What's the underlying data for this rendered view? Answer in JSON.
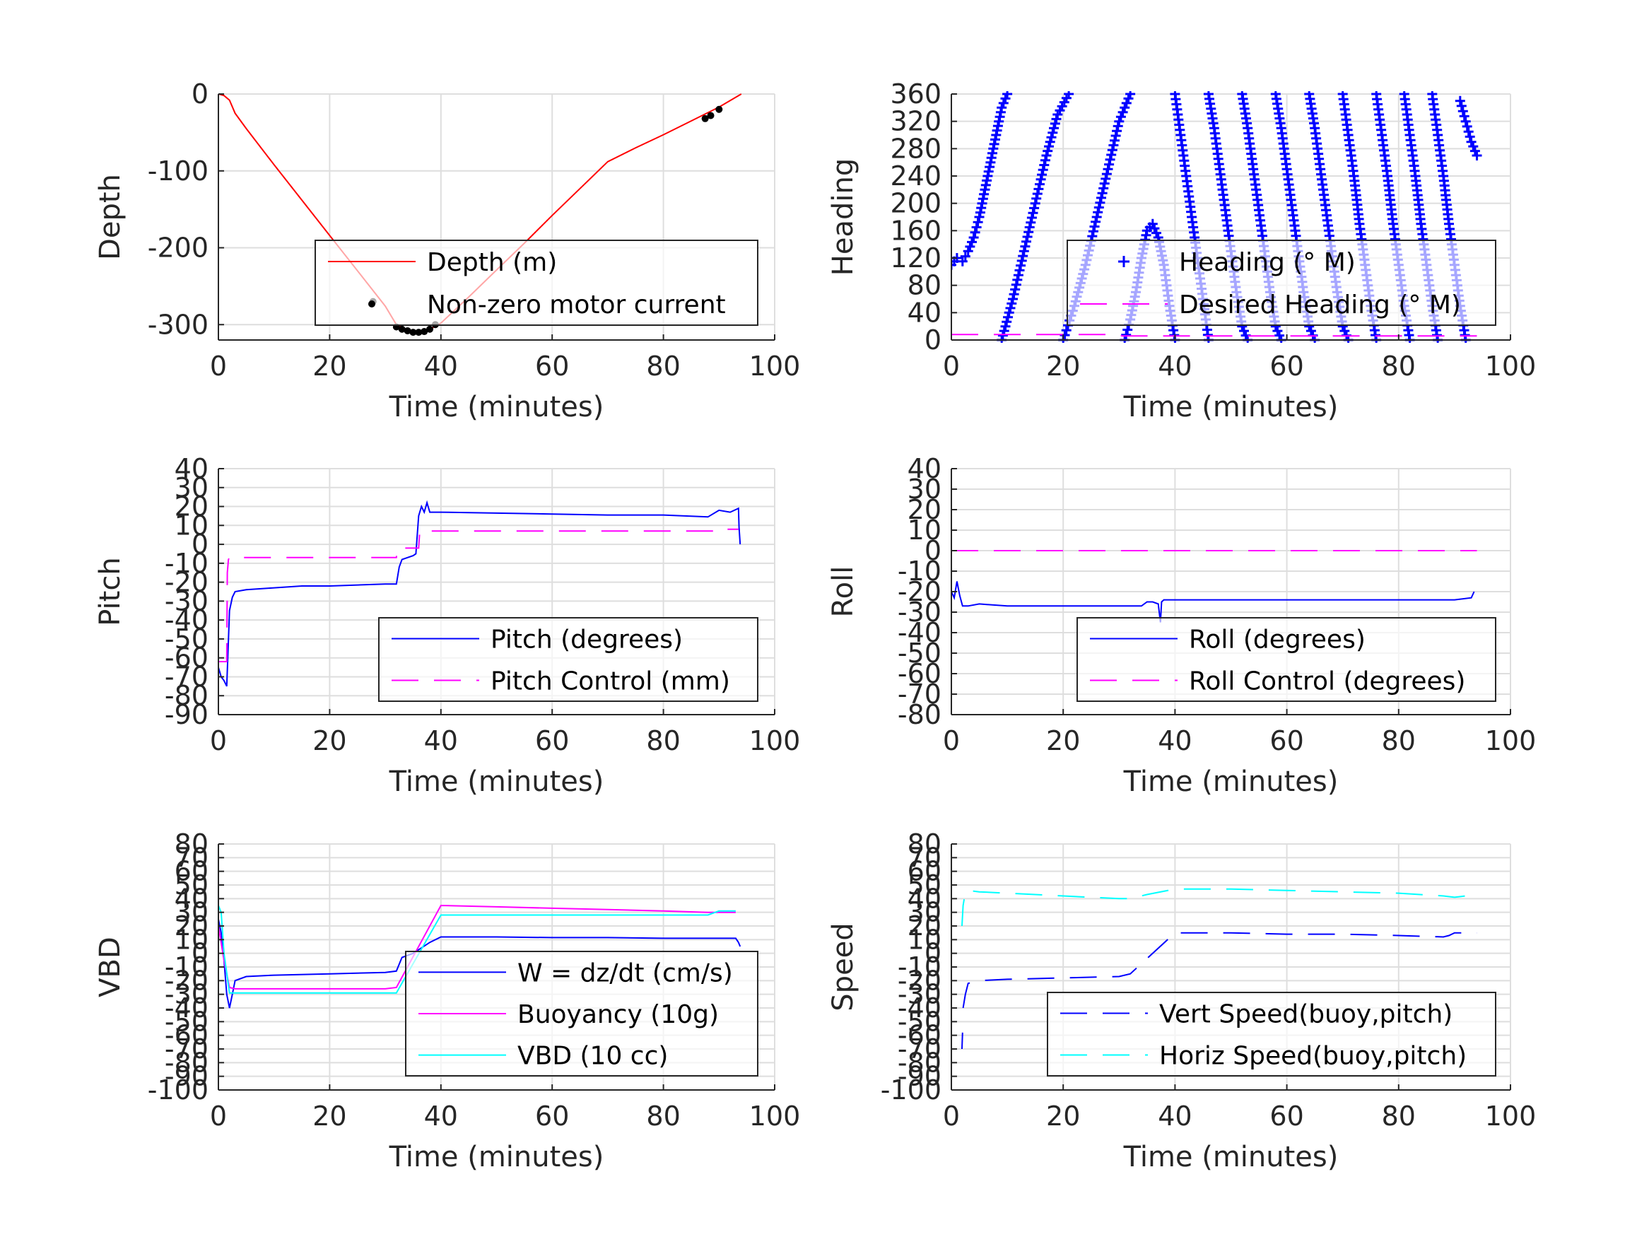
{
  "chart_data": [
    {
      "type": "line",
      "xlabel": "Time (minutes)",
      "ylabel": "Depth",
      "xlim": [
        0,
        100
      ],
      "ylim": [
        -320,
        0
      ],
      "xticks": [
        0,
        20,
        40,
        60,
        80,
        100
      ],
      "yticks": [
        0,
        -100,
        -200,
        -300
      ],
      "grid": true,
      "legend_placement": "bottom-right",
      "series": [
        {
          "name": "Depth (m)",
          "style": "solid",
          "marker": "none",
          "color": "#ff0000",
          "x": [
            0,
            1,
            2,
            3,
            5,
            10,
            15,
            20,
            25,
            30,
            32,
            34,
            36,
            38,
            40,
            45,
            50,
            55,
            60,
            65,
            70,
            75,
            80,
            85,
            90,
            94
          ],
          "y": [
            0,
            -2,
            -8,
            -25,
            -45,
            -92,
            -138,
            -184,
            -230,
            -276,
            -300,
            -307,
            -310,
            -306,
            -298,
            -264,
            -229,
            -194,
            -158,
            -123,
            -88,
            -70,
            -53,
            -35,
            -17,
            0
          ]
        },
        {
          "name": "Non-zero motor current",
          "style": "none",
          "marker": "dot",
          "color": "#000000",
          "x": [
            27.8,
            32,
            33,
            34,
            35,
            36,
            37,
            38,
            39,
            87.5,
            88.5,
            90
          ],
          "y": [
            -270,
            -303,
            -306,
            -308,
            -310,
            -310,
            -309,
            -306,
            -300,
            -32,
            -28,
            -20
          ]
        }
      ]
    },
    {
      "type": "scatter",
      "xlabel": "Time (minutes)",
      "ylabel": "Heading",
      "xlim": [
        0,
        100
      ],
      "ylim": [
        0,
        360
      ],
      "xticks": [
        0,
        20,
        40,
        60,
        80,
        100
      ],
      "yticks": [
        0,
        40,
        80,
        120,
        160,
        200,
        240,
        280,
        320,
        360
      ],
      "grid": true,
      "legend_placement": "bottom-right",
      "series": [
        {
          "name": "Heading (° M)",
          "style": "none",
          "marker": "plus",
          "color": "#0000ff",
          "segments": [
            {
              "x": [
                0,
                1,
                2,
                3,
                4,
                5,
                6,
                7,
                8,
                9,
                10
              ],
              "y": [
                110,
                120,
                115,
                130,
                150,
                180,
                220,
                260,
                300,
                340,
                360
              ]
            },
            {
              "x": [
                9,
                11,
                13,
                15,
                17,
                19,
                21
              ],
              "y": [
                0,
                60,
                130,
                200,
                270,
                330,
                360
              ]
            },
            {
              "x": [
                20,
                22,
                24,
                26,
                28,
                30,
                32
              ],
              "y": [
                0,
                50,
                110,
                180,
                250,
                320,
                360
              ]
            },
            {
              "x": [
                31,
                32,
                33,
                34,
                35,
                36,
                37,
                38,
                39,
                40
              ],
              "y": [
                0,
                30,
                70,
                120,
                160,
                170,
                150,
                110,
                50,
                0
              ]
            },
            {
              "x": [
                40,
                41,
                42,
                43,
                44,
                45,
                46
              ],
              "y": [
                360,
                300,
                240,
                180,
                120,
                60,
                0
              ]
            },
            {
              "x": [
                46,
                47,
                48,
                49,
                50,
                51,
                52,
                53
              ],
              "y": [
                360,
                310,
                250,
                190,
                130,
                70,
                20,
                0
              ]
            },
            {
              "x": [
                52,
                53,
                54,
                55,
                56,
                57,
                58,
                59
              ],
              "y": [
                360,
                310,
                250,
                190,
                130,
                70,
                20,
                0
              ]
            },
            {
              "x": [
                58,
                59,
                60,
                61,
                62,
                63,
                64,
                65
              ],
              "y": [
                360,
                310,
                250,
                190,
                130,
                70,
                20,
                0
              ]
            },
            {
              "x": [
                64,
                65,
                66,
                67,
                68,
                69,
                70,
                71
              ],
              "y": [
                360,
                310,
                250,
                190,
                130,
                70,
                20,
                0
              ]
            },
            {
              "x": [
                70,
                71,
                72,
                73,
                74,
                75,
                76
              ],
              "y": [
                360,
                300,
                240,
                170,
                110,
                50,
                0
              ]
            },
            {
              "x": [
                76,
                77,
                78,
                79,
                80,
                81,
                82
              ],
              "y": [
                360,
                300,
                240,
                170,
                110,
                50,
                0
              ]
            },
            {
              "x": [
                81,
                82,
                83,
                84,
                85,
                86,
                87
              ],
              "y": [
                360,
                300,
                240,
                170,
                110,
                50,
                0
              ]
            },
            {
              "x": [
                86,
                87,
                88,
                89,
                90,
                91,
                92
              ],
              "y": [
                360,
                300,
                240,
                170,
                110,
                50,
                0
              ]
            },
            {
              "x": [
                91,
                92,
                93,
                94
              ],
              "y": [
                350,
                320,
                290,
                270
              ]
            }
          ]
        },
        {
          "name": "Desired Heading (° M)",
          "style": "dashed",
          "marker": "none",
          "color": "#ff00ff",
          "x": [
            0,
            30,
            30.5,
            60,
            94
          ],
          "y": [
            8,
            8,
            6,
            6,
            6
          ]
        }
      ]
    },
    {
      "type": "line",
      "xlabel": "Time (minutes)",
      "ylabel": "Pitch",
      "xlim": [
        0,
        100
      ],
      "ylim": [
        -90,
        40
      ],
      "xticks": [
        0,
        20,
        40,
        60,
        80,
        100
      ],
      "yticks": [
        40,
        30,
        20,
        10,
        0,
        -10,
        -20,
        -30,
        -40,
        -50,
        -60,
        -70,
        -80,
        -90
      ],
      "grid": true,
      "legend_placement": "bottom-right",
      "series": [
        {
          "name": "Pitch (degrees)",
          "style": "solid",
          "marker": "none",
          "color": "#0000ff",
          "x": [
            0,
            0.5,
            1,
            1.5,
            2,
            2.5,
            3,
            5,
            10,
            15,
            20,
            25,
            30,
            32,
            32.5,
            33,
            35,
            35.5,
            36,
            36.5,
            37,
            37.5,
            38,
            40,
            50,
            60,
            70,
            80,
            88,
            90,
            92,
            93.5,
            93.6,
            93.8
          ],
          "y": [
            -65,
            -70,
            -72,
            -75,
            -35,
            -28,
            -25,
            -24,
            -23,
            -22,
            -22,
            -21.5,
            -21,
            -21,
            -12,
            -8,
            -6,
            -5,
            15,
            20,
            17,
            22,
            17,
            17,
            16.5,
            16,
            15.5,
            15.5,
            14.5,
            18,
            17,
            19,
            9,
            0
          ]
        },
        {
          "name": "Pitch Control (mm)",
          "style": "dashed",
          "marker": "none",
          "color": "#ff00ff",
          "x": [
            0,
            1.5,
            1.6,
            1.8,
            2,
            3,
            32,
            32.2,
            36,
            36.2,
            90,
            90.2,
            93.5
          ],
          "y": [
            -62,
            -62,
            -15,
            -8,
            -7,
            -7,
            -7,
            -2,
            -2,
            7,
            7,
            8,
            8
          ]
        }
      ]
    },
    {
      "type": "line",
      "xlabel": "Time (minutes)",
      "ylabel": "Roll",
      "xlim": [
        0,
        100
      ],
      "ylim": [
        -80,
        40
      ],
      "xticks": [
        0,
        20,
        40,
        60,
        80,
        100
      ],
      "yticks": [
        40,
        30,
        20,
        10,
        0,
        -10,
        -20,
        -30,
        -40,
        -50,
        -60,
        -70,
        -80
      ],
      "grid": true,
      "legend_placement": "bottom-right",
      "series": [
        {
          "name": "Roll (degrees)",
          "style": "solid",
          "marker": "none",
          "color": "#0000ff",
          "x": [
            0,
            0.5,
            1,
            1.5,
            2,
            3,
            5,
            10,
            20,
            30,
            34,
            35,
            36,
            37,
            37.4,
            37.6,
            38,
            40,
            50,
            60,
            70,
            80,
            90,
            93,
            93.5
          ],
          "y": [
            -20,
            -23,
            -15,
            -22,
            -27,
            -27,
            -26,
            -27,
            -27,
            -27,
            -27,
            -25,
            -25,
            -26,
            -35,
            -25,
            -24,
            -24,
            -24,
            -24,
            -24,
            -24,
            -24,
            -23,
            -20
          ]
        },
        {
          "name": "Roll Control (degrees)",
          "style": "dashed",
          "marker": "none",
          "color": "#ff00ff",
          "x": [
            0,
            94
          ],
          "y": [
            0,
            0
          ]
        }
      ]
    },
    {
      "type": "line",
      "xlabel": "Time (minutes)",
      "ylabel": "VBD",
      "xlim": [
        0,
        100
      ],
      "ylim": [
        -100,
        80
      ],
      "xticks": [
        0,
        20,
        40,
        60,
        80,
        100
      ],
      "yticks": [
        80,
        70,
        60,
        50,
        40,
        30,
        20,
        10,
        0,
        -10,
        -20,
        -30,
        -40,
        -50,
        -60,
        -70,
        -80,
        -90,
        -100
      ],
      "grid": true,
      "legend_placement": "bottom-right",
      "series": [
        {
          "name": "W = dz/dt (cm/s)",
          "style": "solid",
          "marker": "none",
          "color": "#0000ff",
          "x": [
            0,
            0.5,
            1,
            1.5,
            2,
            2.5,
            3,
            5,
            10,
            20,
            30,
            32,
            33,
            35,
            38,
            40,
            50,
            60,
            70,
            80,
            90,
            93,
            93.5,
            93.8
          ],
          "y": [
            25,
            15,
            -5,
            -30,
            -40,
            -30,
            -20,
            -17,
            -16,
            -15,
            -14,
            -13,
            -3,
            0,
            8,
            12,
            12,
            11.5,
            11.5,
            11,
            11,
            11,
            8,
            5
          ]
        },
        {
          "name": "Buoyancy (10g)",
          "style": "solid",
          "marker": "none",
          "color": "#ff00ff",
          "x": [
            0,
            1,
            2,
            3,
            10,
            20,
            30,
            32,
            40,
            50,
            60,
            70,
            80,
            88,
            90,
            93
          ],
          "y": [
            20,
            -5,
            -25,
            -26,
            -26,
            -26,
            -26,
            -25,
            35,
            34,
            33,
            32,
            31,
            30,
            30,
            30
          ]
        },
        {
          "name": "VBD (10 cc)",
          "style": "solid",
          "marker": "none",
          "color": "#00ffff",
          "x": [
            0,
            0.5,
            1,
            2,
            3,
            10,
            20,
            30,
            32,
            40,
            50,
            60,
            70,
            80,
            88,
            90,
            93
          ],
          "y": [
            35,
            30,
            0,
            -29,
            -29,
            -29,
            -29,
            -29,
            -29,
            28,
            28,
            28,
            28,
            28,
            28,
            31,
            31
          ]
        }
      ]
    },
    {
      "type": "line",
      "xlabel": "Time (minutes)",
      "ylabel": "Speed",
      "xlim": [
        0,
        100
      ],
      "ylim": [
        -100,
        80
      ],
      "xticks": [
        0,
        20,
        40,
        60,
        80,
        100
      ],
      "yticks": [
        80,
        70,
        60,
        50,
        40,
        30,
        20,
        10,
        0,
        -10,
        -20,
        -30,
        -40,
        -50,
        -60,
        -70,
        -80,
        -90,
        -100
      ],
      "grid": true,
      "legend_placement": "bottom-right",
      "series": [
        {
          "name": "Vert Speed(buoy,pitch)",
          "style": "dashed",
          "marker": "none",
          "color": "#0000ff",
          "segments": [
            {
              "x": [
                1.9,
                2.0
              ],
              "y": [
                -70,
                -58
              ]
            },
            {
              "x": [
                2.1,
                2.5,
                3,
                5,
                10,
                20,
                30,
                32,
                40,
                50,
                60,
                70,
                80,
                88,
                89,
                90,
                92,
                94
              ],
              "y": [
                -40,
                -30,
                -22,
                -20,
                -19,
                -18,
                -17,
                -15,
                15,
                15,
                14,
                14,
                13,
                12,
                13,
                15,
                15,
                15
              ]
            }
          ]
        },
        {
          "name": "Horiz Speed(buoy,pitch)",
          "style": "dashed",
          "marker": "none",
          "color": "#00ffff",
          "x": [
            1.9,
            2.1,
            2.5,
            3,
            5,
            10,
            20,
            30,
            32,
            35,
            40,
            50,
            60,
            70,
            80,
            88,
            90,
            92,
            94
          ],
          "y": [
            20,
            35,
            45,
            46,
            45,
            44,
            42,
            40,
            40,
            43,
            47,
            47,
            46,
            45,
            44,
            42,
            41,
            42,
            42
          ]
        }
      ]
    }
  ]
}
